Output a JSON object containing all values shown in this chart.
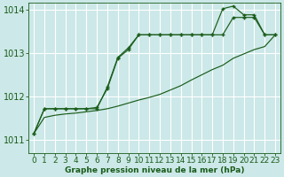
{
  "title": "Graphe pression niveau de la mer (hPa)",
  "bg_color": "#cce8e8",
  "grid_color": "#ffffff",
  "line_color": "#1a5c1a",
  "xlim": [
    -0.5,
    23.5
  ],
  "ylim": [
    1010.7,
    1014.15
  ],
  "yticks": [
    1011,
    1012,
    1013,
    1014
  ],
  "xticks": [
    0,
    1,
    2,
    3,
    4,
    5,
    6,
    7,
    8,
    9,
    10,
    11,
    12,
    13,
    14,
    15,
    16,
    17,
    18,
    19,
    20,
    21,
    22,
    23
  ],
  "series1_x": [
    0,
    1,
    2,
    3,
    4,
    5,
    6,
    7,
    8,
    9,
    10,
    11,
    12,
    13,
    14,
    15,
    16,
    17,
    18,
    19,
    20,
    21,
    22,
    23
  ],
  "series1_y": [
    1011.15,
    1011.72,
    1011.72,
    1011.72,
    1011.72,
    1011.72,
    1011.72,
    1012.22,
    1012.9,
    1013.12,
    1013.42,
    1013.42,
    1013.42,
    1013.42,
    1013.42,
    1013.42,
    1013.42,
    1013.42,
    1013.42,
    1013.82,
    1013.82,
    1013.82,
    1013.42,
    1013.42
  ],
  "series2_x": [
    0,
    1,
    2,
    3,
    4,
    5,
    6,
    7,
    8,
    9,
    10,
    11,
    12,
    13,
    14,
    15,
    16,
    17,
    18,
    19,
    20,
    21,
    22,
    23
  ],
  "series2_y": [
    1011.15,
    1011.72,
    1011.72,
    1011.72,
    1011.72,
    1011.72,
    1011.75,
    1012.18,
    1012.88,
    1013.08,
    1013.42,
    1013.42,
    1013.42,
    1013.42,
    1013.42,
    1013.42,
    1013.42,
    1013.42,
    1014.02,
    1014.08,
    1013.88,
    1013.88,
    1013.42,
    1013.42
  ],
  "series3_x": [
    0,
    1,
    2,
    3,
    4,
    5,
    6,
    7,
    8,
    9,
    10,
    11,
    12,
    13,
    14,
    15,
    16,
    17,
    18,
    19,
    20,
    21,
    22,
    23
  ],
  "series3_y": [
    1011.15,
    1011.52,
    1011.57,
    1011.6,
    1011.62,
    1011.65,
    1011.68,
    1011.72,
    1011.78,
    1011.85,
    1011.92,
    1011.98,
    1012.05,
    1012.15,
    1012.25,
    1012.38,
    1012.5,
    1012.62,
    1012.72,
    1012.88,
    1012.98,
    1013.08,
    1013.15,
    1013.42
  ],
  "xlabel_fontsize": 6.5,
  "ylabel_fontsize": 7
}
